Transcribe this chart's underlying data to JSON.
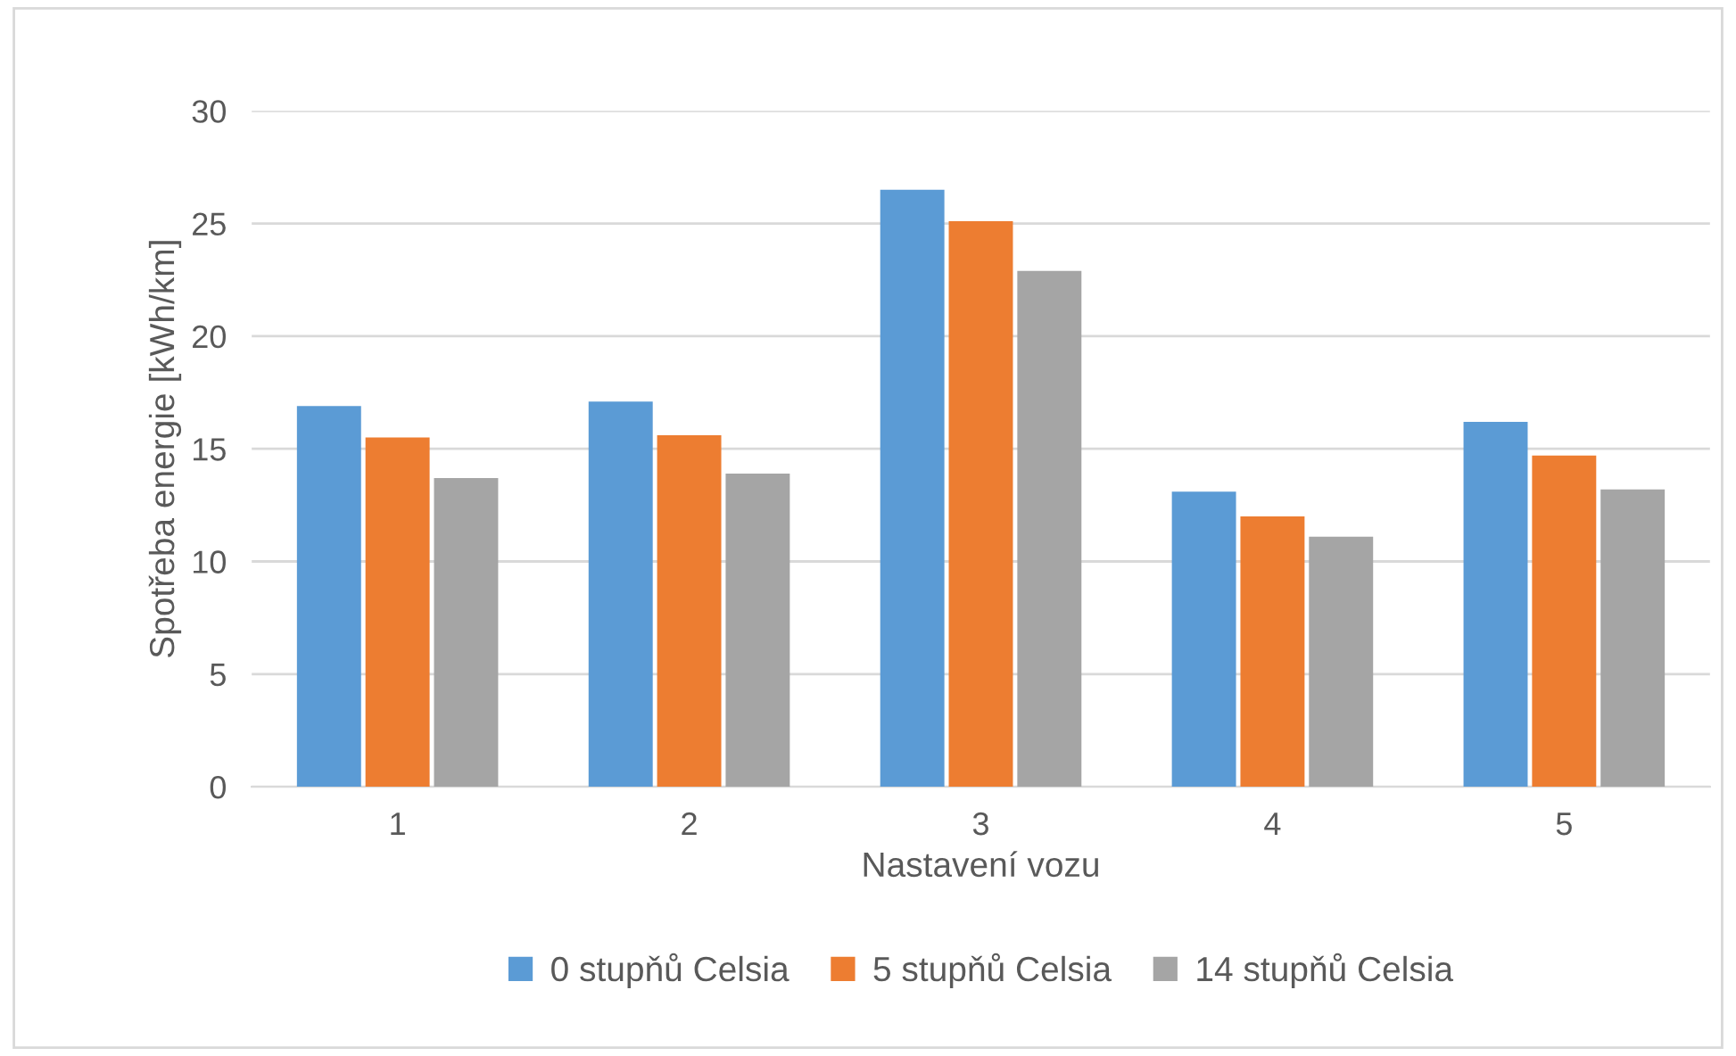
{
  "chart_data": {
    "type": "bar",
    "xlabel": "Nastavení vozu",
    "ylabel": "Spotřeba energie [kWh/km]",
    "categories": [
      "1",
      "2",
      "3",
      "4",
      "5"
    ],
    "series": [
      {
        "name": "0 stupňů Celsia",
        "color": "#5b9bd5",
        "values": [
          16.9,
          17.1,
          26.5,
          13.1,
          16.2
        ]
      },
      {
        "name": "5 stupňů Celsia",
        "color": "#ed7d31",
        "values": [
          15.5,
          15.6,
          25.1,
          12.0,
          14.7
        ]
      },
      {
        "name": "14 stupňů Celsia",
        "color": "#a5a5a5",
        "values": [
          13.7,
          13.9,
          22.9,
          11.1,
          13.2
        ]
      }
    ],
    "ylim": [
      0,
      30
    ],
    "yticks": [
      0,
      5,
      10,
      15,
      20,
      25,
      30
    ],
    "grid": "y",
    "legend": "bottom"
  }
}
